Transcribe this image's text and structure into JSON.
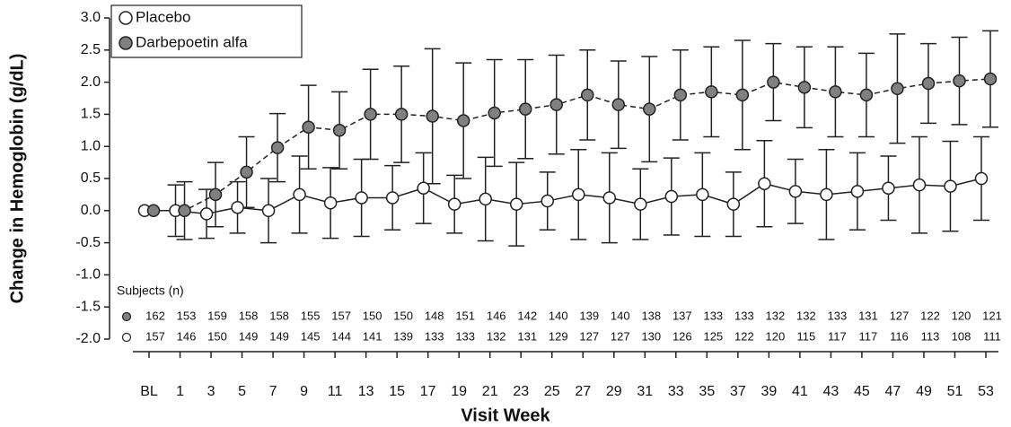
{
  "chart_data": {
    "type": "line",
    "y_label": "Change in Hemoglobin (g/dL)",
    "x_label": "Visit Week",
    "categories": [
      "BL",
      "1",
      "3",
      "5",
      "7",
      "9",
      "11",
      "13",
      "15",
      "17",
      "19",
      "21",
      "23",
      "25",
      "27",
      "29",
      "31",
      "33",
      "35",
      "37",
      "39",
      "41",
      "43",
      "45",
      "47",
      "49",
      "51",
      "53"
    ],
    "ylim": [
      -2.0,
      3.0
    ],
    "yticks": [
      {
        "value": 3,
        "label": "3.0"
      },
      2.5,
      {
        "value": 2,
        "label": "2.0"
      },
      1.5,
      {
        "value": 1,
        "label": "1.0"
      },
      0.5,
      {
        "value": 0,
        "label": "0.0"
      },
      -0.5,
      {
        "value": -1,
        "label": "-1.0"
      },
      -1.5,
      {
        "value": -2,
        "label": "-2.0"
      }
    ],
    "subjects_label": "Subjects (n)",
    "series": [
      {
        "name": "Placebo",
        "color": "#ffffff",
        "dash": false,
        "values": [
          0,
          0,
          -0.05,
          0.05,
          0,
          0.25,
          0.12,
          0.2,
          0.2,
          0.35,
          0.1,
          0.18,
          0.1,
          0.15,
          0.25,
          0.2,
          0.1,
          0.22,
          0.25,
          0.1,
          0.42,
          0.3,
          0.25,
          0.3,
          0.35,
          0.4,
          0.38,
          0.5
        ],
        "error": [
          0,
          0.4,
          0.38,
          0.4,
          0.5,
          0.6,
          0.55,
          0.6,
          0.5,
          0.55,
          0.45,
          0.65,
          0.65,
          0.45,
          0.7,
          0.7,
          0.55,
          0.6,
          0.65,
          0.5,
          0.67,
          0.5,
          0.7,
          0.6,
          0.5,
          0.75,
          0.7,
          0.65
        ],
        "subjects": [
          157,
          146,
          150,
          149,
          149,
          145,
          144,
          141,
          139,
          133,
          133,
          132,
          131,
          129,
          127,
          127,
          130,
          126,
          125,
          122,
          120,
          115,
          117,
          117,
          116,
          113,
          108,
          111
        ]
      },
      {
        "name": "Darbepoetin alfa",
        "color": "#808080",
        "dash": true,
        "values": [
          0,
          0,
          0.25,
          0.6,
          0.98,
          1.3,
          1.25,
          1.5,
          1.5,
          1.47,
          1.4,
          1.52,
          1.58,
          1.65,
          1.8,
          1.65,
          1.58,
          1.8,
          1.85,
          1.8,
          2.0,
          1.92,
          1.85,
          1.8,
          1.9,
          1.98,
          2.02,
          2.05
        ],
        "error": [
          0,
          0.45,
          0.5,
          0.55,
          0.53,
          0.65,
          0.6,
          0.7,
          0.75,
          1.05,
          0.9,
          0.83,
          0.77,
          0.77,
          0.7,
          0.68,
          0.82,
          0.7,
          0.7,
          0.85,
          0.6,
          0.63,
          0.7,
          0.65,
          0.85,
          0.62,
          0.68,
          0.75
        ],
        "subjects": [
          162,
          153,
          159,
          158,
          158,
          155,
          157,
          150,
          150,
          148,
          151,
          146,
          142,
          140,
          139,
          140,
          138,
          137,
          133,
          133,
          132,
          132,
          133,
          131,
          127,
          122,
          120,
          121
        ]
      }
    ]
  }
}
